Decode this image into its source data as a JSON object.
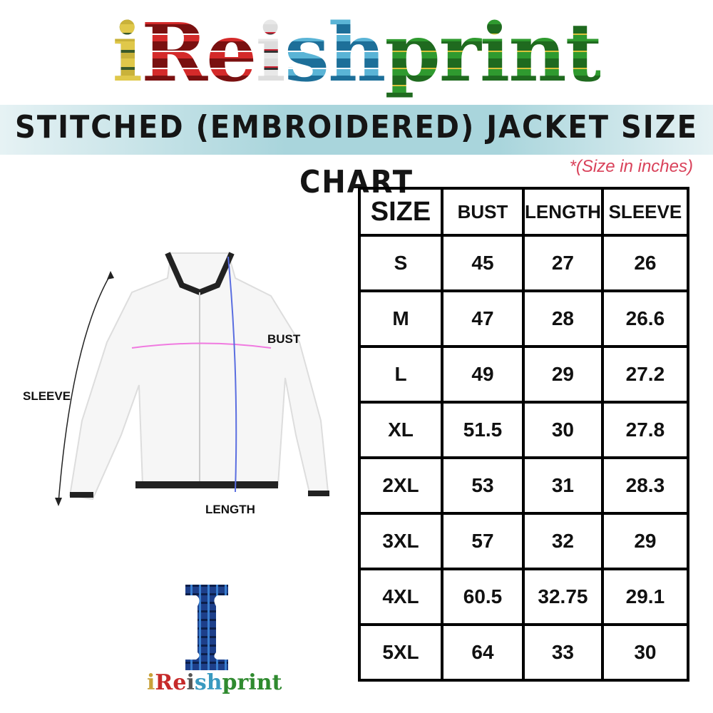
{
  "brand": {
    "logo_text": "iReishprint",
    "footer_logo_text": "ireishprint"
  },
  "banner": {
    "title": "STITCHED (EMBROIDERED) JACKET SIZE CHART"
  },
  "note": "*(Size in inches)",
  "diagram": {
    "labels": {
      "sleeve": "SLEEVE",
      "bust": "BUST",
      "length": "LENGTH"
    }
  },
  "table": {
    "headers": [
      "SIZE",
      "BUST",
      "LENGTH",
      "SLEEVE"
    ],
    "rows": [
      [
        "S",
        "45",
        "27",
        "26"
      ],
      [
        "M",
        "47",
        "28",
        "26.6"
      ],
      [
        "L",
        "49",
        "29",
        "27.2"
      ],
      [
        "XL",
        "51.5",
        "30",
        "27.8"
      ],
      [
        "2XL",
        "53",
        "31",
        "28.3"
      ],
      [
        "3XL",
        "57",
        "32",
        "29"
      ],
      [
        "4XL",
        "60.5",
        "32.75",
        "29.1"
      ],
      [
        "5XL",
        "64",
        "33",
        "30"
      ]
    ]
  },
  "colors": {
    "banner": "#a9d5dc",
    "note": "#d9425a",
    "bust_line": "#f07ae0",
    "length_line": "#5a6ee0"
  }
}
